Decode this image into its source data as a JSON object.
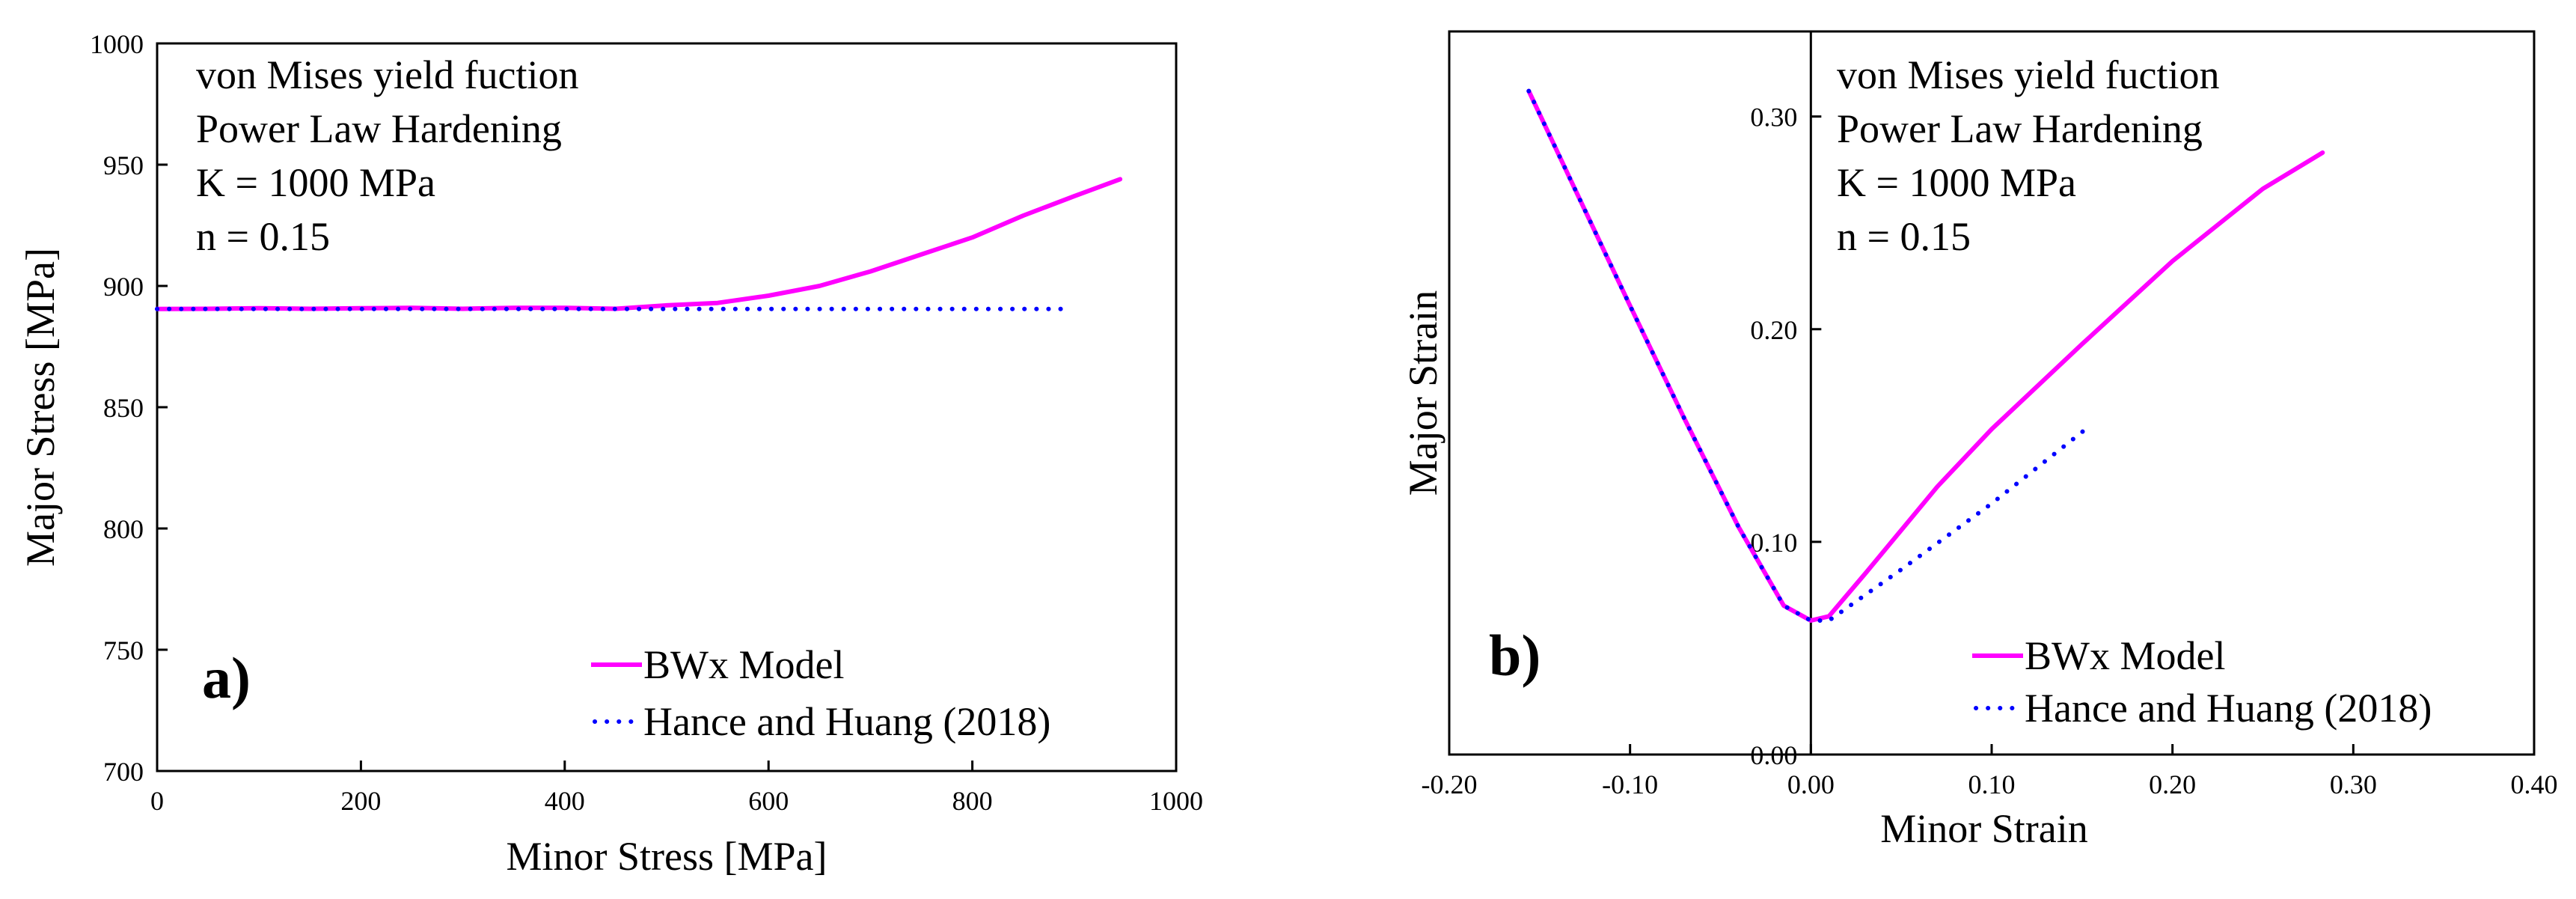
{
  "chart_data": [
    {
      "type": "line",
      "panel_label": "a)",
      "xlabel": "Minor Stress [MPa]",
      "ylabel": "Major Stress [MPa]",
      "xlim": [
        0,
        1000
      ],
      "ylim": [
        700,
        1000
      ],
      "xticks": [
        0,
        200,
        400,
        600,
        800,
        1000
      ],
      "xtick_labels": [
        "0",
        "200",
        "400",
        "600",
        "800",
        "1000"
      ],
      "yticks": [
        700,
        750,
        800,
        850,
        900,
        950,
        1000
      ],
      "ytick_labels": [
        "700",
        "750",
        "800",
        "850",
        "900",
        "950",
        "1000"
      ],
      "annotations": [
        "von Mises yield fuction",
        "Power Law Hardening",
        "K = 1000 MPa",
        "n = 0.15"
      ],
      "series": [
        {
          "name": "BWx Model",
          "color": "#ff00ff",
          "style": "solid",
          "x": [
            0,
            50,
            100,
            150,
            200,
            250,
            300,
            350,
            400,
            450,
            500,
            550,
            600,
            650,
            700,
            750,
            800,
            850,
            900,
            945
          ],
          "y": [
            890.5,
            890.6,
            890.8,
            890.6,
            890.8,
            891,
            890.6,
            891,
            891,
            890.6,
            892,
            893,
            896,
            900,
            906,
            913,
            920,
            929,
            937,
            944
          ]
        },
        {
          "name": "Hance and Huang (2018)",
          "color": "#0000ff",
          "style": "dotted",
          "x": [
            0,
            890
          ],
          "y": [
            890.5,
            890.5
          ]
        }
      ]
    },
    {
      "type": "line",
      "panel_label": "b)",
      "xlabel": "Minor Strain",
      "ylabel": "Major Strain",
      "xlim": [
        -0.2,
        0.4
      ],
      "ylim": [
        0,
        0.34
      ],
      "xticks": [
        -0.2,
        -0.1,
        0,
        0.1,
        0.2,
        0.3,
        0.4
      ],
      "xtick_labels": [
        "-0.20",
        "-0.10",
        "0.00",
        "0.10",
        "0.20",
        "0.30",
        "0.40"
      ],
      "yticks": [
        0,
        0.1,
        0.2,
        0.3
      ],
      "ytick_labels": [
        "0.00",
        "0.10",
        "0.20",
        "0.30"
      ],
      "annotations": [
        "von Mises yield fuction",
        "Power Law Hardening",
        "K = 1000 MPa",
        "n = 0.15"
      ],
      "series": [
        {
          "name": "BWx Model",
          "color": "#ff00ff",
          "style": "solid",
          "x": [
            -0.156,
            -0.13,
            -0.1,
            -0.07,
            -0.04,
            -0.015,
            0,
            0.01,
            0.03,
            0.07,
            0.1,
            0.15,
            0.2,
            0.25,
            0.283
          ],
          "y": [
            0.312,
            0.265,
            0.211,
            0.158,
            0.107,
            0.07,
            0.063,
            0.065,
            0.085,
            0.126,
            0.153,
            0.193,
            0.232,
            0.266,
            0.283
          ]
        },
        {
          "name": "Hance and Huang (2018)",
          "color": "#0000ff",
          "style": "dotted",
          "x": [
            -0.156,
            -0.13,
            -0.1,
            -0.07,
            -0.04,
            -0.015,
            0,
            0.01,
            0.05,
            0.1,
            0.155
          ],
          "y": [
            0.312,
            0.265,
            0.211,
            0.158,
            0.107,
            0.07,
            0.063,
            0.063,
            0.087,
            0.118,
            0.155
          ]
        }
      ]
    }
  ]
}
